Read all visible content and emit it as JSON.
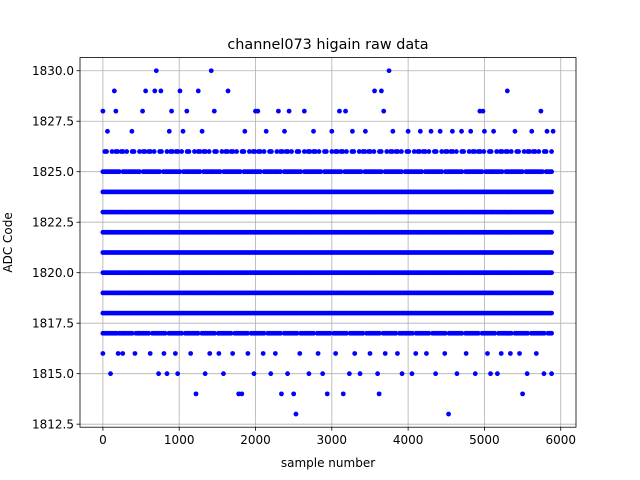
{
  "chart_data": {
    "type": "scatter",
    "title": "channel073 higain raw data",
    "xlabel": "sample number",
    "ylabel": "ADC Code",
    "xlim": [
      -300,
      6200
    ],
    "ylim": [
      1812.35,
      1830.65
    ],
    "xticks": [
      0,
      1000,
      2000,
      3000,
      4000,
      5000,
      6000
    ],
    "xtick_labels": [
      "0",
      "1000",
      "2000",
      "3000",
      "4000",
      "5000",
      "6000"
    ],
    "yticks": [
      1812.5,
      1815.0,
      1817.5,
      1820.0,
      1822.5,
      1825.0,
      1827.5,
      1830.0
    ],
    "ytick_labels": [
      "1812.5",
      "1815.0",
      "1817.5",
      "1820.0",
      "1822.5",
      "1825.0",
      "1827.5",
      "1830.0"
    ],
    "grid": true,
    "marker_color": "#0000ff",
    "x_range": [
      0,
      5900
    ],
    "dense_levels": [
      1818,
      1819,
      1820,
      1821,
      1822,
      1823,
      1824
    ],
    "points": [
      {
        "x": 0,
        "y": 1828
      },
      {
        "x": 0,
        "y": 1816
      },
      {
        "x": 60,
        "y": 1827
      },
      {
        "x": 100,
        "y": 1815
      },
      {
        "x": 150,
        "y": 1829
      },
      {
        "x": 170,
        "y": 1828
      },
      {
        "x": 180,
        "y": 1817
      },
      {
        "x": 200,
        "y": 1816
      },
      {
        "x": 260,
        "y": 1816
      },
      {
        "x": 380,
        "y": 1827
      },
      {
        "x": 420,
        "y": 1816
      },
      {
        "x": 470,
        "y": 1817
      },
      {
        "x": 520,
        "y": 1828
      },
      {
        "x": 560,
        "y": 1829
      },
      {
        "x": 620,
        "y": 1816
      },
      {
        "x": 680,
        "y": 1829
      },
      {
        "x": 700,
        "y": 1830
      },
      {
        "x": 730,
        "y": 1815
      },
      {
        "x": 760,
        "y": 1829
      },
      {
        "x": 800,
        "y": 1816
      },
      {
        "x": 840,
        "y": 1815
      },
      {
        "x": 870,
        "y": 1827
      },
      {
        "x": 900,
        "y": 1828
      },
      {
        "x": 950,
        "y": 1816
      },
      {
        "x": 980,
        "y": 1815
      },
      {
        "x": 1010,
        "y": 1829
      },
      {
        "x": 1050,
        "y": 1827
      },
      {
        "x": 1100,
        "y": 1828
      },
      {
        "x": 1150,
        "y": 1816
      },
      {
        "x": 1220,
        "y": 1814
      },
      {
        "x": 1250,
        "y": 1829
      },
      {
        "x": 1300,
        "y": 1827
      },
      {
        "x": 1340,
        "y": 1815
      },
      {
        "x": 1400,
        "y": 1816
      },
      {
        "x": 1420,
        "y": 1830
      },
      {
        "x": 1460,
        "y": 1828
      },
      {
        "x": 1520,
        "y": 1816
      },
      {
        "x": 1580,
        "y": 1815
      },
      {
        "x": 1640,
        "y": 1829
      },
      {
        "x": 1700,
        "y": 1816
      },
      {
        "x": 1780,
        "y": 1814
      },
      {
        "x": 1820,
        "y": 1814
      },
      {
        "x": 1860,
        "y": 1827
      },
      {
        "x": 1900,
        "y": 1816
      },
      {
        "x": 1980,
        "y": 1815
      },
      {
        "x": 2000,
        "y": 1828
      },
      {
        "x": 2030,
        "y": 1828
      },
      {
        "x": 2100,
        "y": 1816
      },
      {
        "x": 2140,
        "y": 1827
      },
      {
        "x": 2200,
        "y": 1815
      },
      {
        "x": 2260,
        "y": 1816
      },
      {
        "x": 2300,
        "y": 1828
      },
      {
        "x": 2340,
        "y": 1814
      },
      {
        "x": 2380,
        "y": 1827
      },
      {
        "x": 2420,
        "y": 1815
      },
      {
        "x": 2440,
        "y": 1828
      },
      {
        "x": 2500,
        "y": 1814
      },
      {
        "x": 2530,
        "y": 1813
      },
      {
        "x": 2580,
        "y": 1816
      },
      {
        "x": 2640,
        "y": 1828
      },
      {
        "x": 2700,
        "y": 1815
      },
      {
        "x": 2760,
        "y": 1827
      },
      {
        "x": 2820,
        "y": 1816
      },
      {
        "x": 2880,
        "y": 1815
      },
      {
        "x": 2940,
        "y": 1814
      },
      {
        "x": 3000,
        "y": 1827
      },
      {
        "x": 3050,
        "y": 1816
      },
      {
        "x": 3100,
        "y": 1828
      },
      {
        "x": 3150,
        "y": 1814
      },
      {
        "x": 3180,
        "y": 1828
      },
      {
        "x": 3230,
        "y": 1815
      },
      {
        "x": 3270,
        "y": 1827
      },
      {
        "x": 3300,
        "y": 1816
      },
      {
        "x": 3370,
        "y": 1815
      },
      {
        "x": 3440,
        "y": 1827
      },
      {
        "x": 3500,
        "y": 1816
      },
      {
        "x": 3560,
        "y": 1829
      },
      {
        "x": 3600,
        "y": 1815
      },
      {
        "x": 3620,
        "y": 1814
      },
      {
        "x": 3650,
        "y": 1829
      },
      {
        "x": 3680,
        "y": 1828
      },
      {
        "x": 3700,
        "y": 1816
      },
      {
        "x": 3750,
        "y": 1830
      },
      {
        "x": 3800,
        "y": 1827
      },
      {
        "x": 3860,
        "y": 1816
      },
      {
        "x": 3920,
        "y": 1815
      },
      {
        "x": 4000,
        "y": 1827
      },
      {
        "x": 4050,
        "y": 1815
      },
      {
        "x": 4100,
        "y": 1816
      },
      {
        "x": 4160,
        "y": 1827
      },
      {
        "x": 4240,
        "y": 1816
      },
      {
        "x": 4300,
        "y": 1827
      },
      {
        "x": 4360,
        "y": 1815
      },
      {
        "x": 4420,
        "y": 1827
      },
      {
        "x": 4480,
        "y": 1816
      },
      {
        "x": 4530,
        "y": 1813
      },
      {
        "x": 4580,
        "y": 1827
      },
      {
        "x": 4640,
        "y": 1815
      },
      {
        "x": 4700,
        "y": 1827
      },
      {
        "x": 4760,
        "y": 1816
      },
      {
        "x": 4820,
        "y": 1827
      },
      {
        "x": 4880,
        "y": 1815
      },
      {
        "x": 4940,
        "y": 1828
      },
      {
        "x": 4980,
        "y": 1828
      },
      {
        "x": 5000,
        "y": 1827
      },
      {
        "x": 5040,
        "y": 1816
      },
      {
        "x": 5080,
        "y": 1815
      },
      {
        "x": 5120,
        "y": 1827
      },
      {
        "x": 5170,
        "y": 1815
      },
      {
        "x": 5220,
        "y": 1816
      },
      {
        "x": 5300,
        "y": 1829
      },
      {
        "x": 5340,
        "y": 1816
      },
      {
        "x": 5400,
        "y": 1827
      },
      {
        "x": 5460,
        "y": 1816
      },
      {
        "x": 5500,
        "y": 1814
      },
      {
        "x": 5560,
        "y": 1815
      },
      {
        "x": 5620,
        "y": 1827
      },
      {
        "x": 5680,
        "y": 1816
      },
      {
        "x": 5740,
        "y": 1828
      },
      {
        "x": 5780,
        "y": 1815
      },
      {
        "x": 5820,
        "y": 1827
      },
      {
        "x": 5880,
        "y": 1815
      },
      {
        "x": 5900,
        "y": 1827
      }
    ]
  }
}
